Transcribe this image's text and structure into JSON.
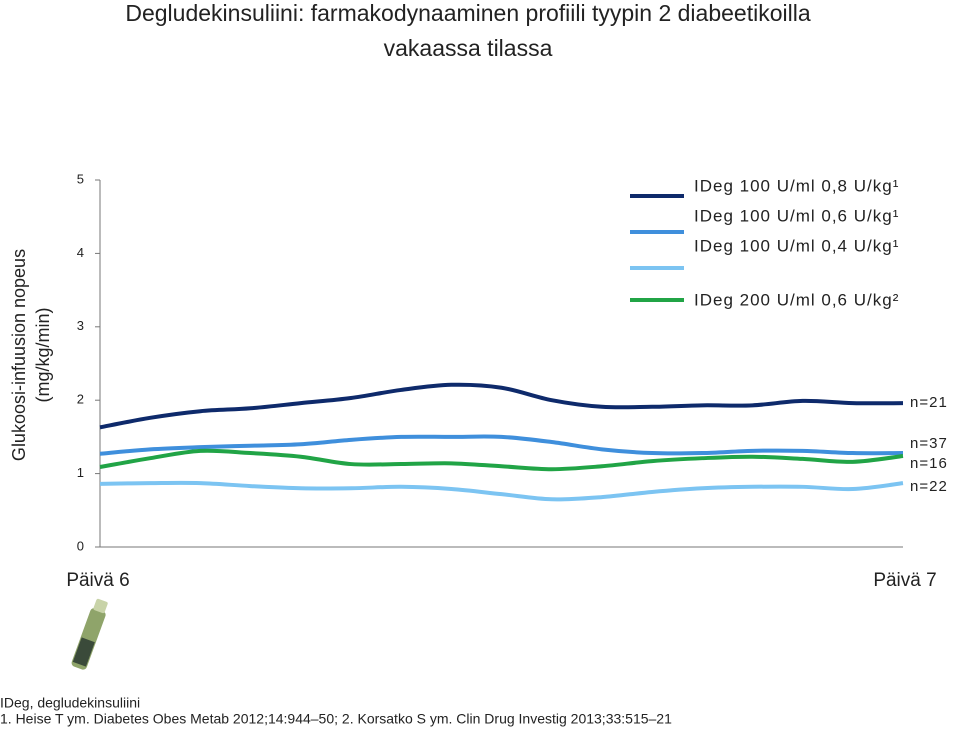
{
  "chart_data": {
    "type": "line",
    "title": [
      "Degludekinsuliini: farmakodynaaminen profiili tyypin 2 diabeetikoilla",
      "vakaassa tilassa"
    ],
    "y_label": [
      "Glukoosi-infuusion nopeus",
      "(mg/kg/min)"
    ],
    "categories": [
      "Päivä 6",
      null,
      null,
      null,
      null,
      null,
      null,
      null,
      null,
      null,
      null,
      null,
      null,
      null,
      null,
      null,
      "Päivä 7"
    ],
    "ylim": [
      0,
      5
    ],
    "yticks": [
      0,
      1,
      2,
      3,
      4,
      5
    ],
    "grid": false,
    "series": [
      {
        "name": "IDeg 100 U/ml 0,8 U/kg¹",
        "color": "#0e2a6b",
        "end_label": "n=21",
        "values": [
          1.63,
          1.76,
          1.85,
          1.89,
          1.96,
          2.03,
          2.14,
          2.21,
          2.17,
          2.0,
          1.91,
          1.91,
          1.93,
          1.93,
          1.99,
          1.96,
          1.96
        ]
      },
      {
        "name": "IDeg 100 U/ml 0,6 U/kg¹",
        "color": "#3f8fdc",
        "end_label": "n=37",
        "values": [
          1.27,
          1.33,
          1.36,
          1.38,
          1.4,
          1.46,
          1.5,
          1.5,
          1.5,
          1.43,
          1.33,
          1.28,
          1.28,
          1.31,
          1.31,
          1.28,
          1.28
        ]
      },
      {
        "name": "IDeg 100 U/ml 0,4 U/kg¹",
        "color": "#7cc4f2",
        "end_label": "n=22",
        "values": [
          0.86,
          0.87,
          0.87,
          0.83,
          0.8,
          0.8,
          0.82,
          0.79,
          0.72,
          0.65,
          0.68,
          0.75,
          0.8,
          0.82,
          0.82,
          0.79,
          0.87
        ]
      },
      {
        "name": "IDeg 200 U/ml 0,6 U/kg²",
        "color": "#21a446",
        "end_label": "n=16",
        "values": [
          1.09,
          1.21,
          1.31,
          1.28,
          1.23,
          1.13,
          1.13,
          1.14,
          1.1,
          1.06,
          1.1,
          1.17,
          1.21,
          1.23,
          1.2,
          1.16,
          1.24
        ]
      }
    ],
    "footnotes": [
      "IDeg, degludekinsuliini",
      "1. Heise T ym. Diabetes Obes Metab 2012;14:944–50; 2. Korsatko S ym. Clin Drug Investig 2013;33:515–21"
    ]
  }
}
